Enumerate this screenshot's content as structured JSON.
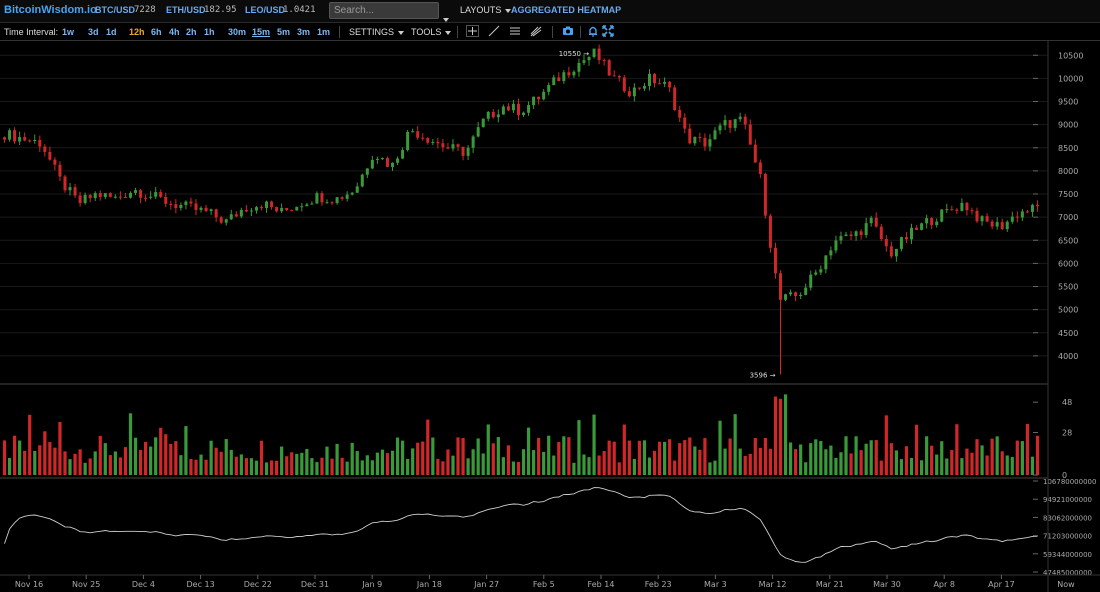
{
  "header": {
    "brand": "BitcoinWisdom.io",
    "tickers": [
      {
        "name": "BTC/USD",
        "value": "7228"
      },
      {
        "name": "ETH/USD",
        "value": "182.95"
      },
      {
        "name": "LEO/USD",
        "value": "1.0421"
      }
    ],
    "search_placeholder": "Search...",
    "layouts_label": "LAYOUTS",
    "heatmap_label": "AGGREGATED HEATMAP"
  },
  "toolbar": {
    "time_interval_label": "Time Interval:",
    "intervals": [
      "1w",
      "3d",
      "1d",
      "12h",
      "6h",
      "4h",
      "2h",
      "1h",
      "30m",
      "15m",
      "5m",
      "3m",
      "1m"
    ],
    "active_interval": "12h",
    "settings_label": "SETTINGS",
    "tools_label": "TOOLS",
    "tool_icons": [
      "crosshair-icon",
      "trendline-icon",
      "hlines-icon",
      "fib-icon",
      "camera-icon",
      "alert-bell-icon",
      "fullscreen-icon"
    ]
  },
  "chart_data": [
    {
      "type": "candlestick",
      "title": "",
      "y_ticks": [
        4000,
        4500,
        5000,
        5500,
        6000,
        6500,
        7000,
        7500,
        8000,
        8500,
        9000,
        9500,
        10000,
        10500
      ],
      "ylim": [
        3500,
        10700
      ],
      "high_marker": {
        "label": "10550",
        "value": 10550
      },
      "low_marker": {
        "label": "3596",
        "value": 3596
      },
      "close_estimates": [
        8800,
        8700,
        8600,
        7800,
        7300,
        7500,
        7400,
        7600,
        7450,
        7300,
        7200,
        7100,
        6900,
        7200,
        7300,
        7100,
        7300,
        7450,
        7400,
        7600,
        8400,
        8100,
        8900,
        8700,
        8500,
        8400,
        9100,
        9400,
        9300,
        9600,
        10000,
        10300,
        10550,
        10000,
        9700,
        10000,
        9800,
        8700,
        8600,
        9000,
        9100,
        7800,
        5200,
        5300,
        5800,
        6500,
        6600,
        6900,
        6200,
        6600,
        6900,
        7100,
        7300,
        6900,
        6800,
        7100,
        7200
      ]
    },
    {
      "type": "bar",
      "title": "",
      "y_ticks": [
        0,
        28,
        48
      ],
      "ylim": [
        0,
        58
      ]
    },
    {
      "type": "line",
      "title": "",
      "y_ticks": [
        "47485000000",
        "59344000000",
        "71203000000",
        "83062000000",
        "94921000000",
        "106780000000"
      ],
      "ylim": [
        47485000000,
        106780000000
      ],
      "start_value_estimate": 66000000000,
      "end_value_estimate": 103000000000
    }
  ],
  "x_axis": {
    "labels": [
      "Nov 16",
      "Nov 25",
      "Dec 4",
      "Dec 13",
      "Dec 22",
      "Dec 31",
      "Jan 9",
      "Jan 18",
      "Jan 27",
      "Feb 5",
      "Feb 14",
      "Feb 23",
      "Mar 3",
      "Mar 12",
      "Mar 21",
      "Mar 30",
      "Apr 8",
      "Apr 17",
      "Now"
    ]
  },
  "colors": {
    "up": "#3a9a3a",
    "down": "#d02828",
    "grid": "#1a1a1a",
    "axis_text": "#aaaaaa",
    "brand": "#4aa3f0"
  }
}
